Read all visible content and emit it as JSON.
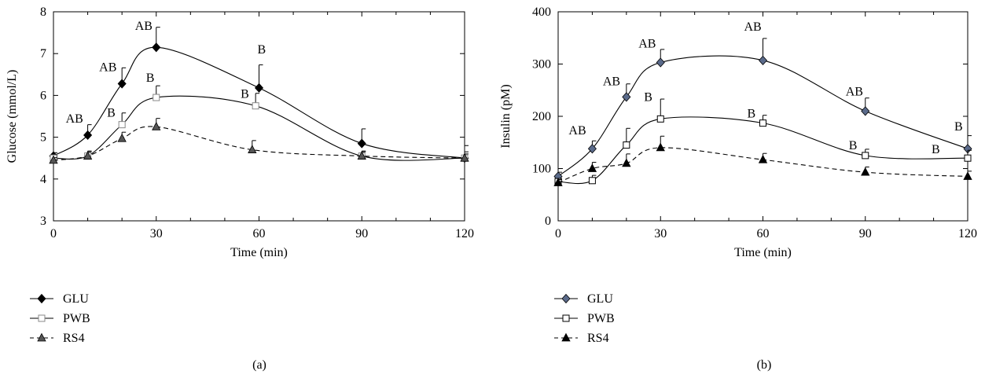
{
  "chart_data": [
    {
      "type": "line",
      "panel_label": "(a)",
      "xlabel": "Time (min)",
      "ylabel": "Glucose (mmol/L)",
      "xlim": [
        0,
        120
      ],
      "ylim": [
        3,
        8
      ],
      "xticks": [
        0,
        30,
        60,
        90,
        120
      ],
      "yticks": [
        3,
        4,
        5,
        6,
        7,
        8
      ],
      "grid": false,
      "legend_position": "bottom-left",
      "series": [
        {
          "name": "GLU",
          "marker": "diamond",
          "marker_fill": "#000000",
          "line_style": "solid",
          "x": [
            0,
            10,
            20,
            30,
            60,
            90,
            120
          ],
          "y": [
            4.55,
            5.05,
            6.28,
            7.15,
            6.18,
            4.85,
            4.5
          ],
          "error": [
            0.08,
            0.25,
            0.38,
            0.48,
            0.55,
            0.35,
            0.3
          ]
        },
        {
          "name": "PWB",
          "marker": "square",
          "marker_fill": "#ffffff",
          "marker_stroke": "#888888",
          "line_style": "solid",
          "x": [
            0,
            10,
            20,
            30,
            59,
            90,
            120
          ],
          "y": [
            4.5,
            4.55,
            5.3,
            5.95,
            5.75,
            4.55,
            4.5
          ],
          "error": [
            0.06,
            0.1,
            0.28,
            0.28,
            0.3,
            0.1,
            0.1
          ]
        },
        {
          "name": "RS4",
          "marker": "triangle",
          "marker_fill": "#555555",
          "line_style": "dashed",
          "x": [
            0,
            10,
            20,
            30,
            58,
            90,
            120
          ],
          "y": [
            4.45,
            4.55,
            4.97,
            5.25,
            4.7,
            4.55,
            4.5
          ],
          "error": [
            0.06,
            0.12,
            0.15,
            0.2,
            0.22,
            0.12,
            0.15
          ]
        }
      ],
      "annotations": [
        {
          "text": "AB",
          "x": 10,
          "y": 5.05
        },
        {
          "text": "AB",
          "x": 20,
          "y": 6.28
        },
        {
          "text": "AB",
          "x": 30,
          "y": 7.15
        },
        {
          "text": "B",
          "x": 60,
          "y": 6.18
        },
        {
          "text": "B",
          "x": 20,
          "y": 5.3
        },
        {
          "text": "B",
          "x": 30,
          "y": 5.95
        },
        {
          "text": "B",
          "x": 59,
          "y": 5.75
        }
      ]
    },
    {
      "type": "line",
      "panel_label": "(b)",
      "xlabel": "Time (min)",
      "ylabel": "Insulin (pM)",
      "xlim": [
        0,
        120
      ],
      "ylim": [
        0,
        400
      ],
      "xticks": [
        0,
        30,
        60,
        90,
        120
      ],
      "yticks": [
        0,
        100,
        200,
        300,
        400
      ],
      "grid": false,
      "legend_position": "bottom-left",
      "series": [
        {
          "name": "GLU",
          "marker": "diamond",
          "marker_fill": "#5a6a8a",
          "line_style": "solid",
          "x": [
            0,
            10,
            20,
            30,
            60,
            90,
            120
          ],
          "y": [
            85,
            138,
            237,
            303,
            307,
            210,
            138
          ],
          "error": [
            8,
            15,
            25,
            25,
            42,
            25,
            25
          ]
        },
        {
          "name": "PWB",
          "marker": "square",
          "marker_fill": "#ffffff",
          "marker_stroke": "#000000",
          "line_style": "solid",
          "x": [
            0,
            10,
            20,
            30,
            60,
            90,
            120
          ],
          "y": [
            75,
            77,
            145,
            195,
            187,
            125,
            120
          ],
          "error": [
            6,
            10,
            32,
            38,
            15,
            12,
            15
          ]
        },
        {
          "name": "RS4",
          "marker": "triangle",
          "marker_fill": "#000000",
          "line_style": "dashed",
          "x": [
            0,
            10,
            20,
            30,
            60,
            90,
            120
          ],
          "y": [
            73,
            100,
            110,
            140,
            117,
            93,
            85
          ],
          "error": [
            6,
            12,
            18,
            22,
            12,
            10,
            10
          ]
        }
      ],
      "annotations": [
        {
          "text": "AB",
          "x": 10,
          "y": 138
        },
        {
          "text": "AB",
          "x": 20,
          "y": 237
        },
        {
          "text": "AB",
          "x": 30,
          "y": 303
        },
        {
          "text": "AB",
          "x": 60,
          "y": 307
        },
        {
          "text": "AB",
          "x": 90,
          "y": 210
        },
        {
          "text": "B",
          "x": 120,
          "y": 138
        },
        {
          "text": "B",
          "x": 30,
          "y": 195
        },
        {
          "text": "B",
          "x": 60,
          "y": 187
        },
        {
          "text": "B",
          "x": 90,
          "y": 125
        },
        {
          "text": "B",
          "x": 120,
          "y": 120
        }
      ]
    }
  ]
}
